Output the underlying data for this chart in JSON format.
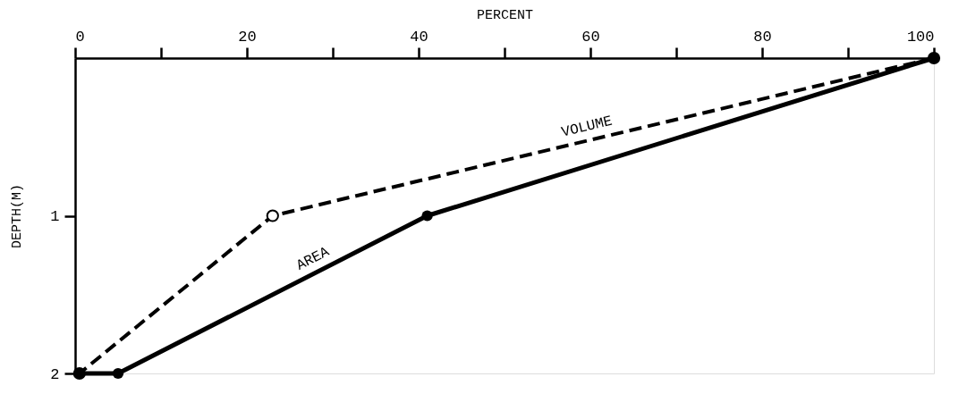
{
  "chart_data": {
    "type": "line",
    "xlabel": "PERCENT",
    "ylabel": "DEPTH(M)",
    "xlim": [
      0,
      100
    ],
    "xticks": [
      0,
      {
        "value": 10,
        "label": null
      },
      20,
      {
        "value": 30,
        "label": null
      },
      40,
      {
        "value": 50,
        "label": null
      },
      60,
      {
        "value": 70,
        "label": null
      },
      80,
      {
        "value": 90,
        "label": null
      },
      100
    ],
    "ylim": [
      2,
      0
    ],
    "yticks": [
      1,
      2
    ],
    "grid": false,
    "marker": "circle",
    "series": [
      {
        "name": "VOLUME",
        "color": "#000000",
        "line_style": "dashed",
        "x": [
          100,
          23,
          0.5
        ],
        "values": [
          0,
          1,
          2
        ]
      },
      {
        "name": "AREA",
        "color": "#000000",
        "line_style": "solid",
        "x": [
          100,
          41,
          5,
          0.5
        ],
        "values": [
          0,
          1,
          2,
          2
        ]
      }
    ]
  }
}
